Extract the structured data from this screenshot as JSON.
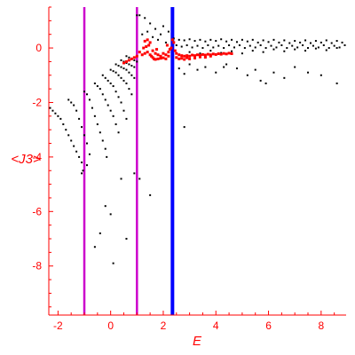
{
  "chart_data": {
    "type": "scatter",
    "xlabel": "E",
    "ylabel": "<J3>",
    "xlim": [
      -2.35,
      8.95
    ],
    "ylim": [
      -9.8,
      1.5
    ],
    "x_ticks": [
      -2,
      0,
      2,
      4,
      6,
      8
    ],
    "y_ticks": [
      0,
      -2,
      -4,
      -6,
      -8
    ],
    "x_tick_labels": [
      "-2",
      "0",
      "2",
      "4",
      "6",
      "8"
    ],
    "y_tick_labels": [
      "0",
      "-2",
      "-4",
      "-6",
      "-8"
    ],
    "grid": false,
    "axis_color": "#ff0000",
    "vertical_lines": [
      {
        "x": -1.0,
        "color": "#cc00cc"
      },
      {
        "x": 1.0,
        "color": "#cc00cc"
      },
      {
        "x": 2.35,
        "color": "#0000ff"
      }
    ],
    "series": [
      {
        "color": "#000000",
        "points": [
          [
            -2.3,
            -2.2
          ],
          [
            -2.2,
            -2.3
          ],
          [
            -2.1,
            -2.4
          ],
          [
            -2.0,
            -2.5
          ],
          [
            -1.9,
            -2.6
          ],
          [
            -1.8,
            -2.8
          ],
          [
            -1.7,
            -3.0
          ],
          [
            -1.6,
            -3.2
          ],
          [
            -1.5,
            -3.4
          ],
          [
            -1.4,
            -3.6
          ],
          [
            -1.3,
            -3.8
          ],
          [
            -1.2,
            -4.0
          ],
          [
            -1.1,
            -4.2
          ],
          [
            -1.05,
            -4.5
          ],
          [
            -1.6,
            -1.9
          ],
          [
            -1.5,
            -2.0
          ],
          [
            -1.4,
            -2.1
          ],
          [
            -1.3,
            -2.3
          ],
          [
            -1.2,
            -2.6
          ],
          [
            -1.1,
            -2.9
          ],
          [
            -1.0,
            -3.2
          ],
          [
            -0.9,
            -3.5
          ],
          [
            -0.8,
            -3.9
          ],
          [
            -0.9,
            -4.3
          ],
          [
            -1.0,
            -1.6
          ],
          [
            -0.9,
            -1.7
          ],
          [
            -0.8,
            -1.9
          ],
          [
            -0.7,
            -2.2
          ],
          [
            -0.6,
            -2.5
          ],
          [
            -0.5,
            -2.8
          ],
          [
            -0.4,
            -3.1
          ],
          [
            -0.3,
            -3.4
          ],
          [
            -0.2,
            -3.7
          ],
          [
            -0.15,
            -4.0
          ],
          [
            -0.6,
            -1.3
          ],
          [
            -0.5,
            -1.4
          ],
          [
            -0.4,
            -1.5
          ],
          [
            -0.3,
            -1.7
          ],
          [
            -0.2,
            -1.9
          ],
          [
            -0.1,
            -2.1
          ],
          [
            0.0,
            -2.3
          ],
          [
            0.1,
            -2.5
          ],
          [
            0.2,
            -2.8
          ],
          [
            0.3,
            -3.1
          ],
          [
            -0.3,
            -1.0
          ],
          [
            -0.2,
            -1.1
          ],
          [
            -0.1,
            -1.2
          ],
          [
            0.0,
            -1.3
          ],
          [
            0.1,
            -1.4
          ],
          [
            0.2,
            -1.6
          ],
          [
            0.3,
            -1.8
          ],
          [
            0.4,
            -2.0
          ],
          [
            0.5,
            -2.3
          ],
          [
            0.6,
            -2.6
          ],
          [
            0.0,
            -0.8
          ],
          [
            0.1,
            -0.85
          ],
          [
            0.2,
            -0.9
          ],
          [
            0.3,
            -1.0
          ],
          [
            0.4,
            -1.1
          ],
          [
            0.5,
            -1.2
          ],
          [
            0.6,
            -1.3
          ],
          [
            0.7,
            -1.5
          ],
          [
            0.8,
            -1.7
          ],
          [
            0.2,
            -0.6
          ],
          [
            0.3,
            -0.65
          ],
          [
            0.4,
            -0.7
          ],
          [
            0.5,
            -0.75
          ],
          [
            0.6,
            -0.8
          ],
          [
            0.7,
            -0.9
          ],
          [
            0.8,
            -1.0
          ],
          [
            0.9,
            -1.1
          ],
          [
            0.4,
            -0.45
          ],
          [
            0.5,
            -0.5
          ],
          [
            0.6,
            -0.55
          ],
          [
            0.7,
            -0.6
          ],
          [
            0.8,
            -0.65
          ],
          [
            0.9,
            -0.7
          ],
          [
            0.6,
            -0.3
          ],
          [
            0.7,
            -0.35
          ],
          [
            0.8,
            -0.4
          ],
          [
            0.9,
            -0.45
          ],
          [
            1.0,
            -0.5
          ],
          [
            -1.1,
            -4.6
          ],
          [
            -0.6,
            -7.3
          ],
          [
            -0.4,
            -6.8
          ],
          [
            -0.2,
            -5.8
          ],
          [
            0.0,
            -6.1
          ],
          [
            0.1,
            -7.9
          ],
          [
            0.4,
            -4.8
          ],
          [
            0.6,
            -7.0
          ],
          [
            0.9,
            -4.6
          ],
          [
            1.1,
            -4.8
          ],
          [
            1.5,
            -5.4
          ],
          [
            2.8,
            -2.9
          ],
          [
            1.0,
            1.2
          ],
          [
            1.1,
            1.2
          ],
          [
            1.3,
            1.1
          ],
          [
            1.5,
            0.9
          ],
          [
            1.7,
            0.7
          ],
          [
            1.9,
            0.5
          ],
          [
            2.0,
            0.8
          ],
          [
            2.2,
            0.6
          ],
          [
            1.2,
            0.5
          ],
          [
            1.4,
            0.6
          ],
          [
            1.6,
            0.4
          ],
          [
            1.8,
            0.3
          ],
          [
            2.1,
            0.2
          ],
          [
            2.4,
            0.35
          ],
          [
            2.6,
            0.3
          ],
          [
            2.8,
            0.28
          ],
          [
            3.0,
            0.32
          ],
          [
            3.2,
            0.26
          ],
          [
            3.4,
            0.3
          ],
          [
            3.6,
            0.24
          ],
          [
            3.8,
            0.3
          ],
          [
            4.0,
            0.26
          ],
          [
            4.2,
            0.32
          ],
          [
            4.4,
            0.24
          ],
          [
            4.6,
            0.3
          ],
          [
            4.8,
            0.22
          ],
          [
            5.0,
            0.3
          ],
          [
            5.2,
            0.24
          ],
          [
            5.4,
            0.3
          ],
          [
            5.6,
            0.2
          ],
          [
            5.8,
            0.28
          ],
          [
            6.0,
            0.22
          ],
          [
            6.2,
            0.3
          ],
          [
            6.4,
            0.2
          ],
          [
            6.6,
            0.28
          ],
          [
            6.8,
            0.18
          ],
          [
            7.0,
            0.26
          ],
          [
            7.2,
            0.2
          ],
          [
            7.4,
            0.28
          ],
          [
            7.6,
            0.18
          ],
          [
            7.8,
            0.26
          ],
          [
            8.0,
            0.2
          ],
          [
            8.2,
            0.28
          ],
          [
            8.4,
            0.18
          ],
          [
            8.6,
            0.26
          ],
          [
            8.8,
            0.2
          ],
          [
            2.5,
            0.1
          ],
          [
            2.7,
            0.05
          ],
          [
            2.9,
            0.1
          ],
          [
            3.1,
            0.02
          ],
          [
            3.3,
            0.08
          ],
          [
            3.5,
            0.0
          ],
          [
            3.7,
            0.1
          ],
          [
            3.9,
            0.02
          ],
          [
            4.1,
            0.08
          ],
          [
            4.3,
            0.0
          ],
          [
            4.5,
            0.1
          ],
          [
            4.7,
            0.02
          ],
          [
            4.9,
            0.1
          ],
          [
            5.1,
            0.0
          ],
          [
            5.3,
            0.08
          ],
          [
            5.5,
            0.02
          ],
          [
            5.7,
            0.1
          ],
          [
            5.9,
            0.0
          ],
          [
            6.1,
            0.08
          ],
          [
            6.3,
            0.02
          ],
          [
            6.5,
            0.1
          ],
          [
            6.7,
            0.0
          ],
          [
            6.9,
            0.08
          ],
          [
            7.1,
            0.02
          ],
          [
            7.3,
            0.1
          ],
          [
            7.5,
            0.0
          ],
          [
            7.7,
            0.08
          ],
          [
            7.9,
            0.02
          ],
          [
            8.1,
            0.1
          ],
          [
            8.3,
            0.0
          ],
          [
            8.5,
            0.08
          ],
          [
            8.7,
            0.02
          ],
          [
            8.9,
            0.1
          ],
          [
            3.0,
            -0.15
          ],
          [
            3.4,
            -0.2
          ],
          [
            3.8,
            -0.1
          ],
          [
            4.2,
            -0.18
          ],
          [
            4.6,
            -0.12
          ],
          [
            5.0,
            -0.2
          ],
          [
            5.4,
            -0.1
          ],
          [
            5.8,
            -0.15
          ],
          [
            6.2,
            -0.05
          ],
          [
            6.6,
            -0.12
          ],
          [
            7.0,
            -0.05
          ],
          [
            7.4,
            -0.1
          ],
          [
            7.8,
            -0.02
          ],
          [
            8.2,
            -0.08
          ],
          [
            8.6,
            0.0
          ],
          [
            3.0,
            -0.6
          ],
          [
            3.3,
            -0.8
          ],
          [
            3.6,
            -0.7
          ],
          [
            4.0,
            -0.9
          ],
          [
            4.4,
            -0.6
          ],
          [
            4.8,
            -0.75
          ],
          [
            5.2,
            -1.0
          ],
          [
            5.5,
            -0.8
          ],
          [
            5.9,
            -1.3
          ],
          [
            6.2,
            -0.9
          ],
          [
            6.6,
            -1.1
          ],
          [
            7.0,
            -0.7
          ],
          [
            7.5,
            -0.9
          ],
          [
            8.0,
            -1.0
          ],
          [
            8.6,
            -1.3
          ],
          [
            2.6,
            -0.75
          ],
          [
            2.8,
            -0.95
          ],
          [
            4.3,
            -0.7
          ],
          [
            5.7,
            -1.2
          ]
        ]
      },
      {
        "color": "#ff0000",
        "points": [
          [
            0.5,
            -0.55
          ],
          [
            0.6,
            -0.5
          ],
          [
            0.7,
            -0.45
          ],
          [
            0.8,
            -0.4
          ],
          [
            0.9,
            -0.35
          ],
          [
            1.0,
            -0.3
          ],
          [
            1.1,
            -0.15
          ],
          [
            1.2,
            -0.25
          ],
          [
            1.25,
            0.0
          ],
          [
            1.3,
            -0.2
          ],
          [
            1.35,
            0.05
          ],
          [
            1.4,
            -0.15
          ],
          [
            1.45,
            0.1
          ],
          [
            1.5,
            -0.25
          ],
          [
            1.55,
            -0.3
          ],
          [
            1.6,
            -0.35
          ],
          [
            1.65,
            -0.4
          ],
          [
            1.7,
            -0.42
          ],
          [
            1.8,
            -0.4
          ],
          [
            1.9,
            -0.38
          ],
          [
            2.0,
            -0.36
          ],
          [
            2.1,
            -0.4
          ],
          [
            2.2,
            -0.3
          ],
          [
            2.3,
            0.0
          ],
          [
            2.35,
            0.3
          ],
          [
            2.4,
            0.2
          ],
          [
            2.45,
            -0.1
          ],
          [
            2.5,
            -0.2
          ],
          [
            2.6,
            -0.25
          ],
          [
            2.7,
            -0.28
          ],
          [
            2.8,
            -0.3
          ],
          [
            2.9,
            -0.28
          ],
          [
            3.0,
            -0.3
          ],
          [
            3.1,
            -0.26
          ],
          [
            3.2,
            -0.28
          ],
          [
            3.3,
            -0.25
          ],
          [
            3.4,
            -0.27
          ],
          [
            3.5,
            -0.24
          ],
          [
            3.6,
            -0.26
          ],
          [
            3.7,
            -0.23
          ],
          [
            3.8,
            -0.25
          ],
          [
            3.9,
            -0.22
          ],
          [
            4.0,
            -0.24
          ],
          [
            4.1,
            -0.21
          ],
          [
            4.2,
            -0.23
          ],
          [
            4.3,
            -0.2
          ],
          [
            4.4,
            -0.22
          ],
          [
            4.5,
            -0.19
          ],
          [
            4.6,
            -0.21
          ],
          [
            1.7,
            -0.2
          ],
          [
            1.8,
            -0.25
          ],
          [
            1.9,
            -0.3
          ],
          [
            2.0,
            -0.2
          ],
          [
            2.1,
            -0.25
          ],
          [
            2.2,
            -0.15
          ],
          [
            2.5,
            -0.35
          ],
          [
            2.6,
            -0.4
          ],
          [
            2.7,
            -0.38
          ],
          [
            2.8,
            -0.42
          ],
          [
            2.9,
            -0.36
          ],
          [
            3.0,
            -0.4
          ],
          [
            3.2,
            -0.37
          ],
          [
            3.4,
            -0.33
          ],
          [
            3.6,
            -0.34
          ],
          [
            3.8,
            -0.3
          ],
          [
            1.4,
            0.3
          ],
          [
            1.5,
            0.2
          ],
          [
            1.3,
            0.25
          ],
          [
            1.6,
            -0.1
          ],
          [
            1.75,
            -0.05
          ],
          [
            2.15,
            0.1
          ],
          [
            2.25,
            -0.05
          ]
        ]
      }
    ]
  }
}
